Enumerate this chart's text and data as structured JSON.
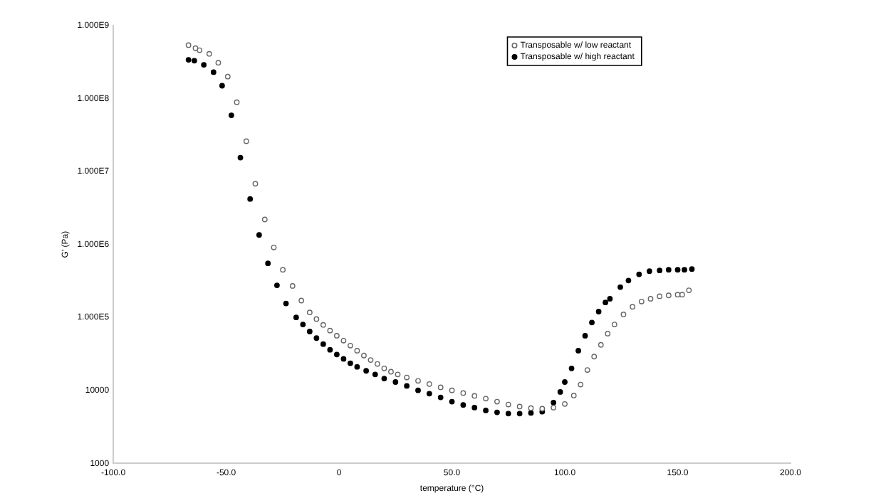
{
  "chart_data": {
    "type": "scatter",
    "xlabel": "temperature (°C)",
    "ylabel": "G' (Pa)",
    "log": "y",
    "grid": false,
    "legend": "top right",
    "marker": "circle",
    "xlim": [
      -100,
      200
    ],
    "xticks": [
      {
        "value": -100,
        "label": "-100.0"
      },
      {
        "value": -50,
        "label": "-50.0"
      },
      0,
      {
        "value": 50,
        "label": "50.0"
      },
      {
        "value": 100,
        "label": "100.0"
      },
      {
        "value": 150,
        "label": "150.0"
      },
      {
        "value": 200,
        "label": "200.0"
      }
    ],
    "ylim": [
      1000,
      1000000000
    ],
    "yticks": [
      1000,
      10000,
      {
        "value": 100000,
        "label": "1.000E5"
      },
      {
        "value": 1000000,
        "label": "1.000E6"
      },
      {
        "value": 10000000,
        "label": "1.000E7"
      },
      {
        "value": 100000000,
        "label": "1.000E8"
      },
      {
        "value": 1000000000,
        "label": "1.000E9"
      }
    ],
    "series": [
      {
        "name": "Transposable w/ low reactant",
        "color": "#666666",
        "x": [
          -66.7,
          -63.6,
          -61.8,
          -57.5,
          -53.5,
          -49.3,
          -45.3,
          -41.1,
          -37.1,
          -32.9,
          -28.9,
          -24.9,
          -20.6,
          -16.7,
          -13,
          -10,
          -7,
          -4,
          -1,
          2,
          5,
          8,
          11,
          14,
          17,
          20,
          23,
          26,
          30,
          35,
          40,
          45,
          50,
          55,
          60,
          65,
          70,
          75,
          80,
          85,
          90,
          95,
          100,
          104,
          107,
          110,
          113,
          116,
          119,
          122,
          126,
          130,
          134,
          138,
          142,
          146,
          150,
          152,
          155
        ],
        "values": [
          540000000,
          490000000,
          460000000,
          410000000,
          310000000,
          200000000,
          89000000,
          26000000,
          6800000,
          2200000,
          910000,
          450000,
          270000,
          170000,
          117000,
          95000,
          79000,
          66000,
          56000,
          48000,
          41000,
          35000,
          30000,
          26000,
          23000,
          20000,
          18000,
          16500,
          15000,
          13500,
          12200,
          11000,
          10000,
          9200,
          8400,
          7700,
          7000,
          6400,
          6000,
          5700,
          5600,
          5800,
          6500,
          8500,
          12000,
          19000,
          29000,
          42000,
          60000,
          80000,
          110000,
          140000,
          165000,
          180000,
          195000,
          200000,
          205000,
          205000,
          235000
        ]
      },
      {
        "name": "Transposable w/ high reactant",
        "color": "#000000",
        "x": [
          -66.7,
          -64.1,
          -59.9,
          -55.6,
          -51.8,
          -47.7,
          -43.7,
          -39.4,
          -35.4,
          -31.5,
          -27.5,
          -23.5,
          -19,
          -16,
          -13,
          -10,
          -7,
          -4,
          -1,
          2,
          5,
          8,
          12,
          16,
          20,
          25,
          30,
          35,
          40,
          45,
          50,
          55,
          60,
          65,
          70,
          75,
          80,
          85,
          90,
          95,
          98,
          100,
          103,
          106,
          109,
          112,
          115,
          118,
          120,
          124.6,
          128.2,
          132.9,
          137.5,
          142,
          146,
          150,
          153,
          156.3
        ],
        "values": [
          340000000,
          330000000,
          290000000,
          230000000,
          150000000,
          59000000,
          15500000,
          4200000,
          1350000,
          550000,
          275000,
          155000,
          100000,
          80000,
          64000,
          52000,
          43000,
          36000,
          31000,
          27000,
          23500,
          21000,
          18500,
          16500,
          14500,
          13000,
          11500,
          10000,
          9000,
          8000,
          7000,
          6300,
          5800,
          5300,
          5000,
          4800,
          4800,
          4900,
          5100,
          6800,
          9500,
          13000,
          20000,
          35000,
          56000,
          85000,
          120000,
          160000,
          180000,
          260000,
          320000,
          390000,
          430000,
          440000,
          450000,
          450000,
          450000,
          460000
        ]
      }
    ]
  }
}
